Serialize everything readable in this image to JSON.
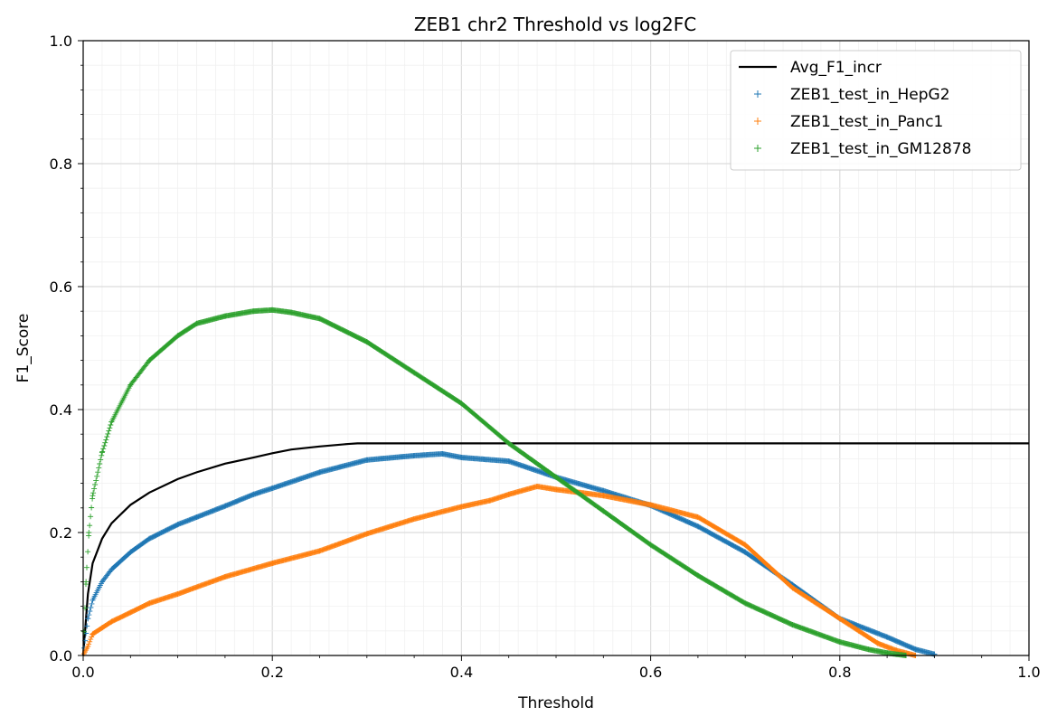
{
  "chart_data": {
    "type": "line",
    "title": "ZEB1 chr2 Threshold vs log2FC",
    "xlabel": "Threshold",
    "ylabel": "F1_Score",
    "xlim": [
      0.0,
      1.0
    ],
    "ylim": [
      0.0,
      1.0
    ],
    "x_ticks": [
      "0.0",
      "0.2",
      "0.4",
      "0.6",
      "0.8",
      "1.0"
    ],
    "y_ticks": [
      "0.0",
      "0.2",
      "0.4",
      "0.6",
      "0.8",
      "1.0"
    ],
    "grid": "major and minor",
    "legend_position": "top-right",
    "series": [
      {
        "name": "Avg_F1_incr",
        "style": "line",
        "color": "#000000",
        "x": [
          0.0,
          0.005,
          0.01,
          0.02,
          0.03,
          0.05,
          0.07,
          0.1,
          0.12,
          0.15,
          0.18,
          0.2,
          0.22,
          0.25,
          0.28,
          0.29,
          0.3,
          0.5,
          0.7,
          1.0
        ],
        "y": [
          0.0,
          0.1,
          0.15,
          0.19,
          0.215,
          0.245,
          0.265,
          0.287,
          0.298,
          0.312,
          0.322,
          0.329,
          0.335,
          0.34,
          0.344,
          0.345,
          0.345,
          0.345,
          0.345,
          0.345
        ]
      },
      {
        "name": "ZEB1_test_in_HepG2",
        "style": "marker",
        "color": "#1f77b4",
        "x": [
          0.0,
          0.005,
          0.01,
          0.02,
          0.03,
          0.05,
          0.07,
          0.1,
          0.12,
          0.15,
          0.18,
          0.2,
          0.25,
          0.3,
          0.35,
          0.38,
          0.4,
          0.45,
          0.5,
          0.55,
          0.6,
          0.65,
          0.7,
          0.75,
          0.8,
          0.85,
          0.88,
          0.9
        ],
        "y": [
          0.0,
          0.06,
          0.09,
          0.12,
          0.14,
          0.168,
          0.19,
          0.213,
          0.225,
          0.243,
          0.262,
          0.272,
          0.298,
          0.318,
          0.325,
          0.328,
          0.322,
          0.316,
          0.29,
          0.268,
          0.244,
          0.21,
          0.168,
          0.115,
          0.06,
          0.03,
          0.01,
          0.002
        ]
      },
      {
        "name": "ZEB1_test_in_Panc1",
        "style": "marker",
        "color": "#ff7f0e",
        "x": [
          0.0,
          0.005,
          0.01,
          0.02,
          0.03,
          0.05,
          0.07,
          0.1,
          0.15,
          0.2,
          0.25,
          0.3,
          0.35,
          0.4,
          0.43,
          0.45,
          0.48,
          0.5,
          0.55,
          0.6,
          0.65,
          0.7,
          0.75,
          0.8,
          0.82,
          0.84,
          0.86,
          0.88
        ],
        "y": [
          0.0,
          0.015,
          0.035,
          0.045,
          0.055,
          0.07,
          0.085,
          0.1,
          0.128,
          0.15,
          0.17,
          0.198,
          0.222,
          0.242,
          0.252,
          0.262,
          0.275,
          0.27,
          0.26,
          0.245,
          0.225,
          0.18,
          0.11,
          0.06,
          0.04,
          0.02,
          0.008,
          0.0
        ]
      },
      {
        "name": "ZEB1_test_in_GM12878",
        "style": "marker",
        "color": "#2ca02c",
        "x": [
          0.0,
          0.003,
          0.006,
          0.01,
          0.02,
          0.03,
          0.05,
          0.07,
          0.1,
          0.12,
          0.15,
          0.18,
          0.2,
          0.22,
          0.25,
          0.3,
          0.35,
          0.4,
          0.45,
          0.5,
          0.55,
          0.6,
          0.65,
          0.7,
          0.75,
          0.8,
          0.83,
          0.85,
          0.87
        ],
        "y": [
          0.0,
          0.12,
          0.2,
          0.26,
          0.33,
          0.38,
          0.44,
          0.48,
          0.52,
          0.54,
          0.552,
          0.56,
          0.562,
          0.558,
          0.548,
          0.51,
          0.46,
          0.41,
          0.345,
          0.29,
          0.235,
          0.18,
          0.13,
          0.085,
          0.05,
          0.022,
          0.01,
          0.004,
          0.0
        ]
      }
    ]
  }
}
